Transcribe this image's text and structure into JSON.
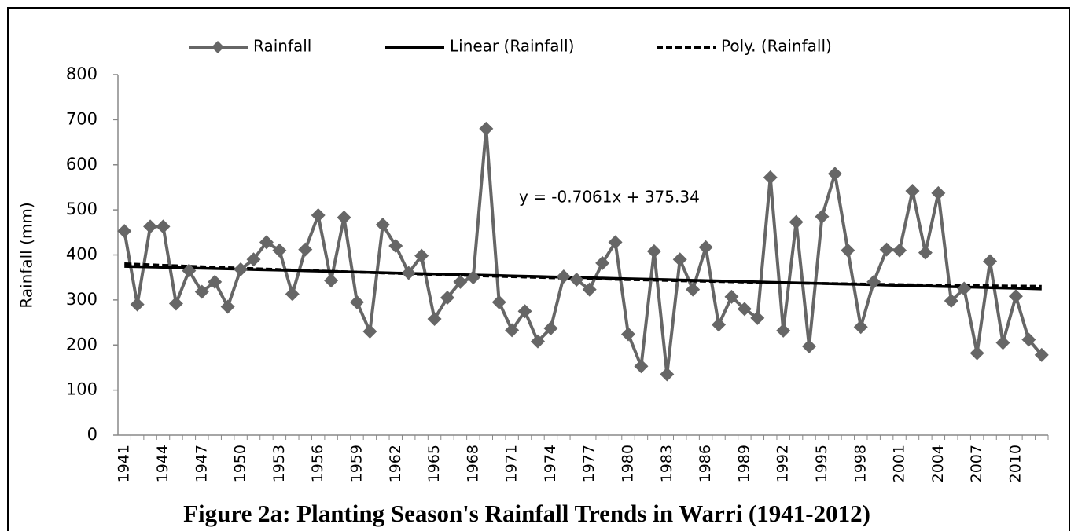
{
  "chart_data": {
    "type": "line",
    "title": "Figure 2a: Planting Season's Rainfall Trends in Warri (1941-2012)",
    "y_label": "Rainfall (mm)",
    "annotation": "y = -0.7061x + 375.34",
    "categories": [
      "1941",
      null,
      null,
      "1944",
      null,
      null,
      "1947",
      null,
      null,
      "1950",
      null,
      null,
      "1953",
      null,
      null,
      "1956",
      null,
      null,
      "1959",
      null,
      null,
      "1962",
      null,
      null,
      "1965",
      null,
      null,
      "1968",
      null,
      null,
      "1971",
      null,
      null,
      "1974",
      null,
      null,
      "1977",
      null,
      null,
      "1980",
      null,
      null,
      "1983",
      null,
      null,
      "1986",
      null,
      null,
      "1989",
      null,
      null,
      "1992",
      null,
      null,
      "1995",
      null,
      null,
      "1998",
      null,
      null,
      "2001",
      null,
      null,
      "2004",
      null,
      null,
      "2007",
      null,
      null,
      "2010",
      null,
      null
    ],
    "series": [
      {
        "name": "Rainfall",
        "color": "#666666",
        "marker": "diamond",
        "dashed": false,
        "values": [
          453,
          290,
          463,
          463,
          292,
          365,
          318,
          340,
          285,
          368,
          390,
          428,
          410,
          313,
          412,
          488,
          343,
          483,
          295,
          230,
          467,
          420,
          360,
          398,
          258,
          305,
          340,
          350,
          680,
          295,
          233,
          275,
          208,
          237,
          352,
          345,
          323,
          382,
          428,
          224,
          153,
          408,
          135,
          390,
          323,
          417,
          245,
          307,
          280,
          260,
          572,
          232,
          473,
          197,
          485,
          580,
          410,
          240,
          340,
          412,
          410,
          542,
          405,
          537,
          298,
          325,
          182,
          386,
          205,
          308,
          212,
          178
        ]
      },
      {
        "name": "Linear (Rainfall)",
        "color": "#000000",
        "marker": "none",
        "dashed": false,
        "values": [
          374.6,
          373.9,
          373.2,
          372.5,
          371.8,
          371.1,
          370.4,
          369.7,
          369.0,
          368.3,
          367.6,
          366.9,
          366.2,
          365.5,
          364.7,
          364.0,
          363.3,
          362.6,
          361.9,
          361.2,
          360.5,
          359.8,
          359.1,
          358.4,
          357.7,
          357.0,
          356.3,
          355.6,
          354.9,
          354.2,
          353.4,
          352.7,
          352.0,
          351.3,
          350.6,
          349.9,
          349.2,
          348.5,
          347.8,
          347.1,
          346.4,
          345.7,
          345.0,
          344.3,
          343.6,
          342.9,
          342.2,
          341.4,
          340.7,
          340.0,
          339.3,
          338.6,
          337.9,
          337.2,
          336.5,
          335.8,
          335.1,
          334.4,
          333.7,
          333.0,
          332.3,
          331.6,
          330.9,
          330.1,
          329.4,
          328.7,
          328.0,
          327.3,
          326.6,
          325.9,
          325.2,
          324.5
        ]
      },
      {
        "name": "Poly. (Rainfall)",
        "color": "#000000",
        "marker": "none",
        "dashed": true,
        "values": [
          380.4,
          379.3,
          378.2,
          377.0,
          376.0,
          374.9,
          373.8,
          372.7,
          371.7,
          370.7,
          369.6,
          368.6,
          367.6,
          366.6,
          365.7,
          364.6,
          363.7,
          362.7,
          361.8,
          360.9,
          360.0,
          359.1,
          358.2,
          357.4,
          356.5,
          355.7,
          354.9,
          354.0,
          353.2,
          352.5,
          351.7,
          350.8,
          350.1,
          349.3,
          348.6,
          347.9,
          347.2,
          346.5,
          345.8,
          345.2,
          344.5,
          343.9,
          343.3,
          342.6,
          342.0,
          341.5,
          340.9,
          340.3,
          339.7,
          339.1,
          338.6,
          338.1,
          337.6,
          337.1,
          336.6,
          336.2,
          335.7,
          335.3,
          334.8,
          334.4,
          334.0,
          333.6,
          333.3,
          332.9,
          332.4,
          332.1,
          331.8,
          331.5,
          331.1,
          330.9,
          330.6,
          330.3
        ]
      }
    ],
    "ylim": [
      0,
      800
    ],
    "yticks": [
      0,
      100,
      200,
      300,
      400,
      500,
      600,
      700,
      800
    ],
    "grid": false,
    "legend": "top"
  }
}
